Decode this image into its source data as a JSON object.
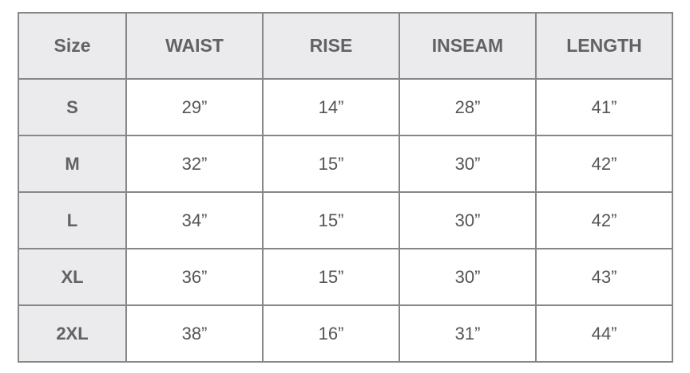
{
  "headers": [
    "Size",
    "WAIST",
    "RISE",
    "INSEAM",
    "LENGTH"
  ],
  "rows": [
    {
      "size": "S",
      "values": [
        "29”",
        "14”",
        "28”",
        "41”"
      ]
    },
    {
      "size": "M",
      "values": [
        "32”",
        "15”",
        "30”",
        "42”"
      ]
    },
    {
      "size": "L",
      "values": [
        "34”",
        "15”",
        "30”",
        "42”"
      ]
    },
    {
      "size": "XL",
      "values": [
        "36”",
        "15”",
        "30”",
        "43”"
      ]
    },
    {
      "size": "2XL",
      "values": [
        "38”",
        "16”",
        "31”",
        "44”"
      ]
    }
  ]
}
